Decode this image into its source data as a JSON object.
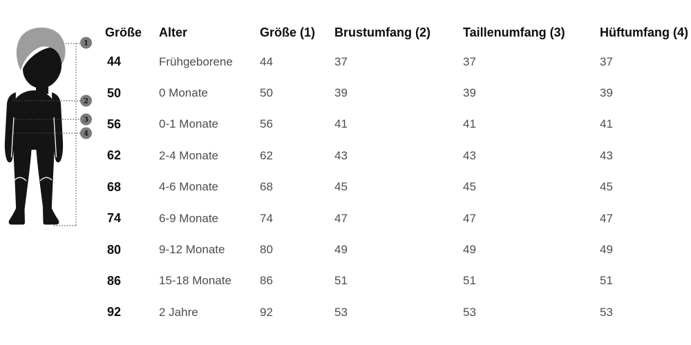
{
  "colors": {
    "background": "#ffffff",
    "text_primary": "#0d0d0d",
    "text_secondary": "#4d4d4d",
    "silhouette_body": "#141414",
    "silhouette_hair": "#9d9d9d",
    "marker_fill": "#7b7b7b",
    "dotted_line": "#4d4d4d"
  },
  "figure": {
    "markers": [
      {
        "label": "1",
        "measures": "Größe"
      },
      {
        "label": "2",
        "measures": "Brustumfang"
      },
      {
        "label": "3",
        "measures": "Taillenumfang"
      },
      {
        "label": "4",
        "measures": "Hüftumfang"
      }
    ]
  },
  "chart_data": {
    "type": "table",
    "columns": [
      "Größe",
      "Alter",
      "Größe (1)",
      "Brustumfang (2)",
      "Taillenumfang (3)",
      "Hüftumfang (4)"
    ],
    "rows": [
      [
        "44",
        "Frühgeborene",
        "44",
        "37",
        "37",
        "37"
      ],
      [
        "50",
        "0 Monate",
        "50",
        "39",
        "39",
        "39"
      ],
      [
        "56",
        "0-1 Monate",
        "56",
        "41",
        "41",
        "41"
      ],
      [
        "62",
        "2-4 Monate",
        "62",
        "43",
        "43",
        "43"
      ],
      [
        "68",
        "4-6 Monate",
        "68",
        "45",
        "45",
        "45"
      ],
      [
        "74",
        "6-9 Monate",
        "74",
        "47",
        "47",
        "47"
      ],
      [
        "80",
        "9-12 Monate",
        "80",
        "49",
        "49",
        "49"
      ],
      [
        "86",
        "15-18 Monate",
        "86",
        "51",
        "51",
        "51"
      ],
      [
        "92",
        "2 Jahre",
        "92",
        "53",
        "53",
        "53"
      ]
    ]
  }
}
